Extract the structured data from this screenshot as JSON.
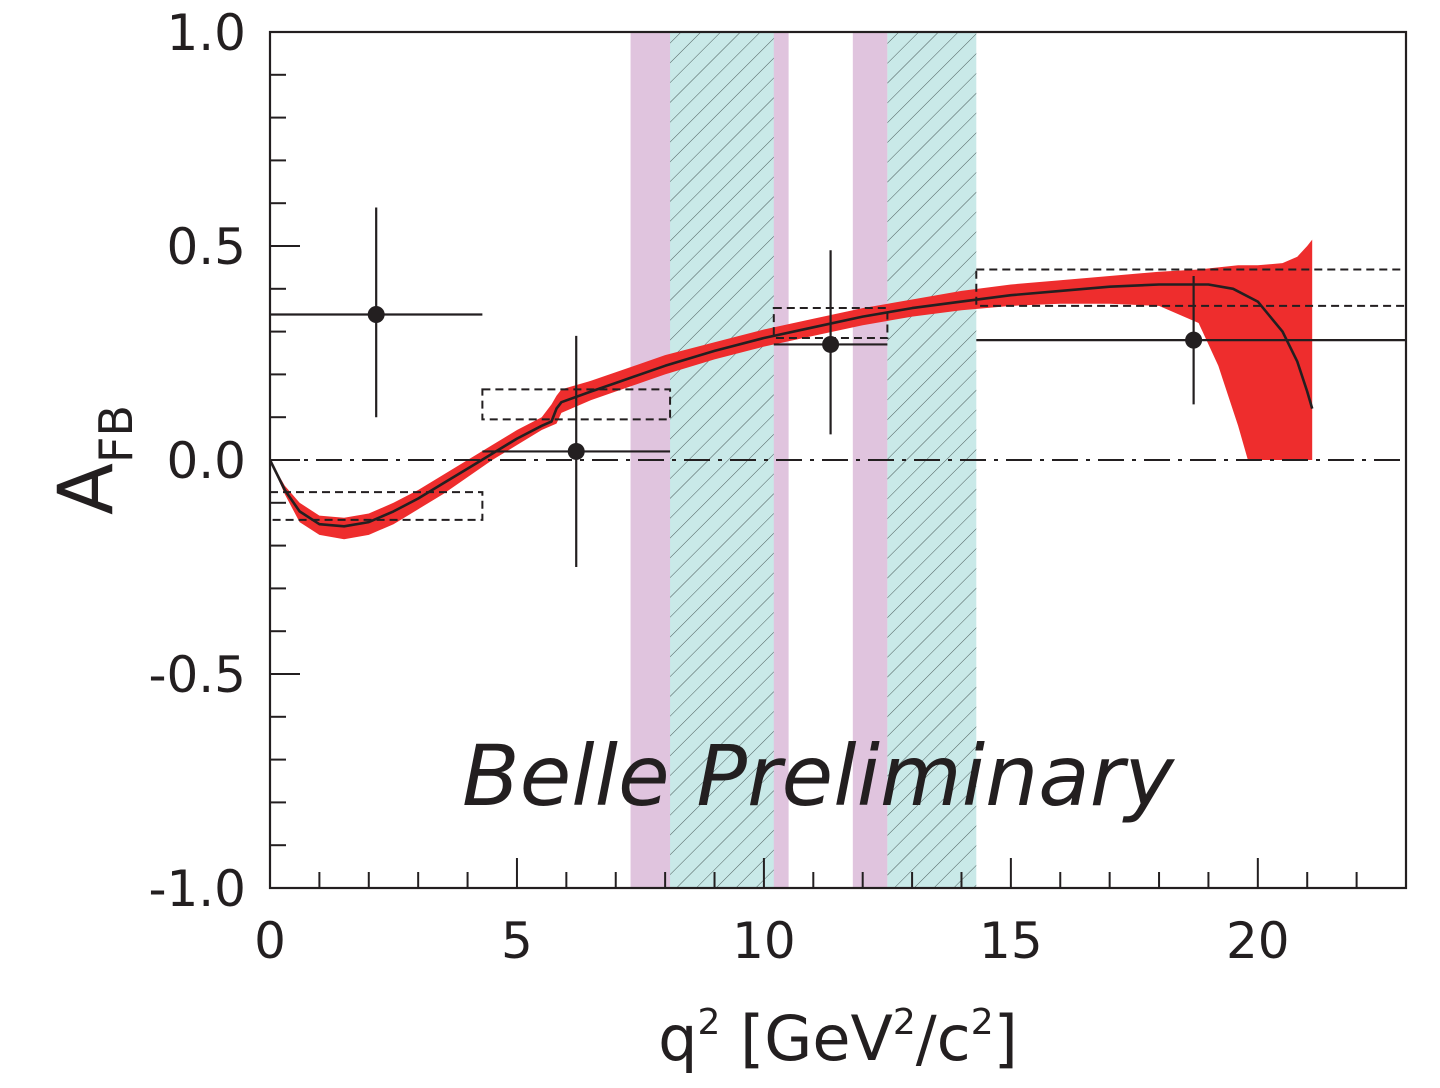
{
  "chart_data": {
    "type": "scatter",
    "title": "",
    "xlabel_parts": {
      "q": "q",
      "exp1": "2",
      "unit_open": " [GeV",
      "exp2": "2",
      "slash_c": "/c",
      "exp3": "2",
      "unit_close": "]"
    },
    "ylabel_parts": {
      "main": "A",
      "sub": "FB"
    },
    "xlim": [
      0,
      23
    ],
    "ylim": [
      -1.0,
      1.0
    ],
    "x_tick_labels": [
      {
        "value": 0,
        "label": "0"
      },
      {
        "value": 5,
        "label": "5"
      },
      {
        "value": 10,
        "label": "10"
      },
      {
        "value": 15,
        "label": "15"
      },
      {
        "value": 20,
        "label": "20"
      }
    ],
    "y_tick_labels": [
      {
        "value": 1.0,
        "label": "1.0"
      },
      {
        "value": 0.5,
        "label": "0.5"
      },
      {
        "value": 0.0,
        "label": "0.0"
      },
      {
        "value": -0.5,
        "label": "-0.5"
      },
      {
        "value": -1.0,
        "label": "-1.0"
      }
    ],
    "x_minor_step": 1,
    "y_minor_step": 0.1,
    "watermark": "Belle Preliminary",
    "data_points": {
      "name": "Belle data",
      "color": "#231f20",
      "points": [
        {
          "x": 2.15,
          "y": 0.34,
          "xlo": 0.0,
          "xhi": 4.3,
          "ylo": 0.1,
          "yhi": 0.59
        },
        {
          "x": 6.2,
          "y": 0.02,
          "xlo": 4.3,
          "xhi": 8.1,
          "ylo": -0.25,
          "yhi": 0.29
        },
        {
          "x": 11.35,
          "y": 0.27,
          "xlo": 10.2,
          "xhi": 12.5,
          "ylo": 0.06,
          "yhi": 0.49
        },
        {
          "x": 18.7,
          "y": 0.28,
          "xlo": 14.3,
          "xhi": 23.0,
          "ylo": 0.13,
          "yhi": 0.43
        }
      ]
    },
    "sm_boxes": {
      "name": "SM prediction (binned)",
      "style": "dashed",
      "boxes": [
        {
          "xlo": 0.0,
          "xhi": 4.3,
          "ylo": -0.14,
          "yhi": -0.075
        },
        {
          "xlo": 4.3,
          "xhi": 8.1,
          "ylo": 0.095,
          "yhi": 0.165
        },
        {
          "xlo": 10.2,
          "xhi": 12.5,
          "ylo": 0.285,
          "yhi": 0.355
        },
        {
          "xlo": 14.3,
          "xhi": 23.0,
          "ylo": 0.36,
          "yhi": 0.445
        }
      ]
    },
    "sm_curve": {
      "name": "SM A_FB",
      "color": "#231f20",
      "x": [
        0.0,
        0.3,
        0.6,
        1.0,
        1.5,
        2.0,
        2.5,
        3.0,
        3.5,
        4.0,
        4.5,
        5.0,
        5.5,
        5.7,
        5.8,
        5.9,
        6.5,
        7.0,
        8.0,
        9.0,
        10.0,
        11.0,
        12.0,
        13.0,
        14.0,
        15.0,
        16.0,
        17.0,
        18.0,
        19.0,
        19.5,
        20.0,
        20.5,
        20.8,
        21.0,
        21.1
      ],
      "y": [
        0.0,
        -0.07,
        -0.12,
        -0.15,
        -0.155,
        -0.145,
        -0.12,
        -0.09,
        -0.055,
        -0.02,
        0.015,
        0.05,
        0.08,
        0.09,
        0.12,
        0.135,
        0.16,
        0.18,
        0.22,
        0.255,
        0.285,
        0.31,
        0.335,
        0.355,
        0.37,
        0.385,
        0.395,
        0.405,
        0.41,
        0.41,
        0.4,
        0.37,
        0.3,
        0.23,
        0.16,
        0.12
      ]
    },
    "sm_band": {
      "name": "SM uncertainty",
      "color": "#ee2d2d",
      "x": [
        0.0,
        0.3,
        0.6,
        1.0,
        1.5,
        2.0,
        2.5,
        3.0,
        3.5,
        4.0,
        4.5,
        5.0,
        5.5,
        5.7,
        5.8,
        5.9,
        6.5,
        7.0,
        8.0,
        9.0,
        10.0,
        11.0,
        12.0,
        13.0,
        14.0,
        15.0,
        16.0,
        17.0,
        18.0,
        18.8,
        19.2,
        19.6,
        19.8,
        20.0,
        20.5,
        20.8,
        21.0,
        21.1
      ],
      "upper": [
        0.0,
        -0.06,
        -0.1,
        -0.13,
        -0.135,
        -0.125,
        -0.1,
        -0.07,
        -0.035,
        0.0,
        0.035,
        0.07,
        0.1,
        0.13,
        0.15,
        0.165,
        0.185,
        0.205,
        0.245,
        0.275,
        0.305,
        0.33,
        0.355,
        0.375,
        0.395,
        0.41,
        0.42,
        0.43,
        0.44,
        0.445,
        0.45,
        0.455,
        0.455,
        0.455,
        0.46,
        0.475,
        0.5,
        0.515
      ],
      "lower": [
        0.0,
        -0.08,
        -0.145,
        -0.175,
        -0.185,
        -0.175,
        -0.15,
        -0.115,
        -0.08,
        -0.04,
        0.0,
        0.035,
        0.07,
        0.08,
        0.085,
        0.11,
        0.14,
        0.16,
        0.2,
        0.235,
        0.265,
        0.29,
        0.315,
        0.335,
        0.35,
        0.36,
        0.365,
        0.365,
        0.36,
        0.32,
        0.22,
        0.08,
        0.0,
        0.0,
        0.0,
        0.0,
        0.0,
        0.0
      ]
    },
    "vetoed_regions": [
      {
        "name": "J/psi veto (pink)",
        "xlo": 7.3,
        "xhi": 10.5,
        "color": "#e0c4de"
      },
      {
        "name": "J/psi veto (hatched)",
        "xlo": 8.1,
        "xhi": 10.2,
        "color": "#c9e9e8",
        "hatch": true
      },
      {
        "name": "psi(2S) veto (pink)",
        "xlo": 11.8,
        "xhi": 12.5,
        "color": "#e0c4de"
      },
      {
        "name": "psi(2S) veto (hatched)",
        "xlo": 12.5,
        "xhi": 14.3,
        "color": "#c9e9e8",
        "hatch": true
      }
    ],
    "zero_line": {
      "y": 0.0,
      "style": "dash-dot"
    },
    "legend": "none"
  }
}
